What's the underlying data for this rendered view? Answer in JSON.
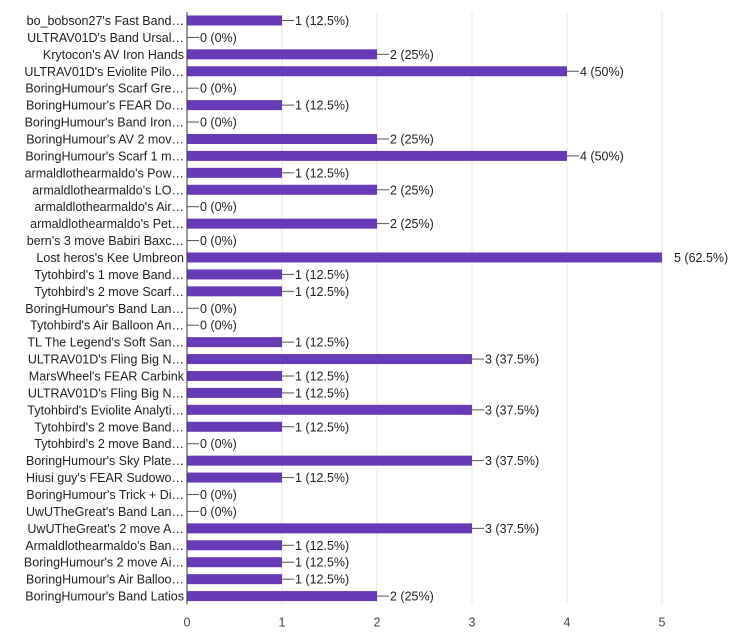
{
  "chart_data": {
    "type": "bar",
    "orientation": "horizontal",
    "categories": [
      "bo_bobson27's Fast Band…",
      "ULTRAV01D's Band Ursal…",
      "Krytocon's AV Iron Hands",
      "ULTRAV01D's Eviolite Pilo…",
      "BoringHumour's Scarf Gre…",
      "BoringHumour's FEAR Do…",
      "BoringHumour's Band Iron…",
      "BoringHumour's AV 2 mov…",
      "BoringHumour's Scarf 1 m…",
      "armaldlothearmaldo's Pow…",
      "armaldlothearmaldo's LO…",
      "armaldlothearmaldo's Air…",
      "armaldlothearmaldo's Pet…",
      "bern's 3 move Babiri Baxc…",
      "Lost heros's Kee Umbreon",
      "Tytohbird's 1 move Band…",
      "Tytohbird's 2 move Scarf…",
      "BoringHumour's Band Lan…",
      "Tytohbird's Air Balloon An…",
      "TL The Legend's Soft San…",
      "ULTRAV01D's Fling Big N…",
      "MarsWheel's FEAR Carbink",
      "ULTRAV01D's Fling Big N…",
      "Tytohbird's Eviolite Analyti…",
      "Tytohbird's 2 move Band…",
      "Tytohbird's 2 move Band…",
      "BoringHumour's Sky Plate…",
      "Hiusi guy's FEAR Sudowo…",
      "BoringHumour's Trick + Di…",
      "UwUTheGreat's Band Lan…",
      "UwUTheGreat's 2 move A…",
      "Armaldlothearmaldo's Ban…",
      "BoringHumour's 2 move Ai…",
      "BoringHumour's Air Balloo…",
      "BoringHumour's Band Latios"
    ],
    "values": [
      1,
      0,
      2,
      4,
      0,
      1,
      0,
      2,
      4,
      1,
      2,
      0,
      2,
      0,
      5,
      1,
      1,
      0,
      0,
      1,
      3,
      1,
      1,
      3,
      1,
      0,
      3,
      1,
      0,
      0,
      3,
      1,
      1,
      1,
      2
    ],
    "value_labels": [
      "1 (12.5%)",
      "0 (0%)",
      "2 (25%)",
      "4 (50%)",
      "0 (0%)",
      "1 (12.5%)",
      "0 (0%)",
      "2 (25%)",
      "4 (50%)",
      "1 (12.5%)",
      "2 (25%)",
      "0 (0%)",
      "2 (25%)",
      "0 (0%)",
      "5 (62.5%)",
      "1 (12.5%)",
      "1 (12.5%)",
      "0 (0%)",
      "0 (0%)",
      "1 (12.5%)",
      "3 (37.5%)",
      "1 (12.5%)",
      "1 (12.5%)",
      "3 (37.5%)",
      "1 (12.5%)",
      "0 (0%)",
      "3 (37.5%)",
      "1 (12.5%)",
      "0 (0%)",
      "0 (0%)",
      "3 (37.5%)",
      "1 (12.5%)",
      "1 (12.5%)",
      "1 (12.5%)",
      "2 (25%)"
    ],
    "xticks": [
      0,
      1,
      2,
      3,
      4,
      5
    ],
    "xlim": [
      0,
      5
    ],
    "title": "",
    "xlabel": "",
    "ylabel": "",
    "grid": true,
    "bar_color": "#673ab7"
  }
}
